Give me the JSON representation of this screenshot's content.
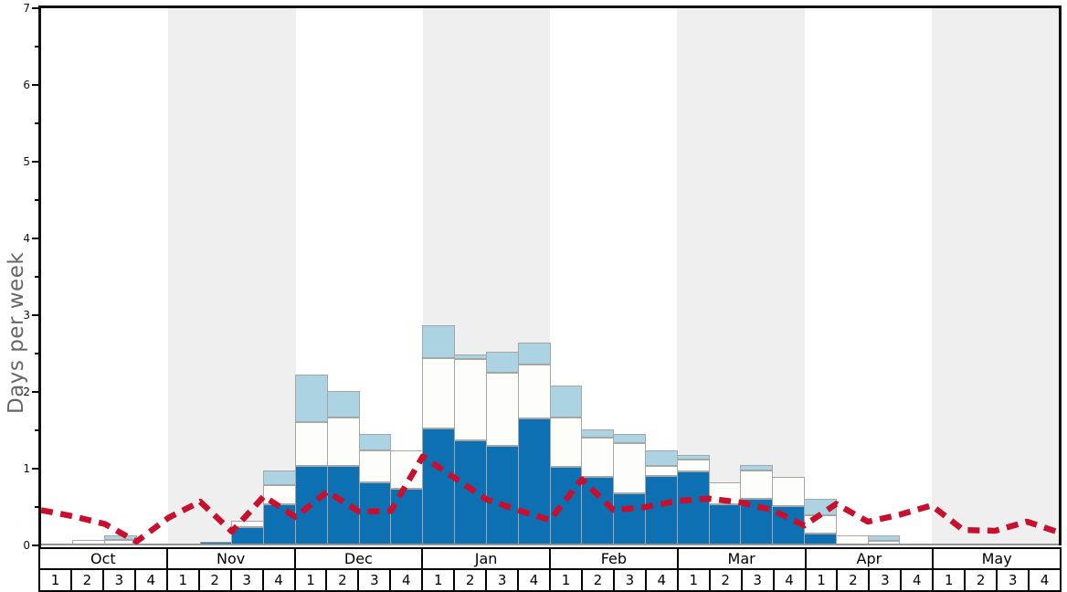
{
  "y_axis": {
    "label": "Days per week",
    "tick_labels": [
      "0",
      "1",
      "2",
      "3",
      "4",
      "5",
      "6",
      "7"
    ],
    "max": 7,
    "minor_tick_step": 0.5
  },
  "x_axis": {
    "months": [
      "Oct",
      "Nov",
      "Dec",
      "Jan",
      "Feb",
      "Mar",
      "Apr",
      "May"
    ],
    "week_labels": [
      "1",
      "2",
      "3",
      "4"
    ],
    "shaded_months": [
      "Nov",
      "Jan",
      "Mar",
      "May"
    ]
  },
  "colors": {
    "dark_blue": "#0c70b2",
    "bar_white": "#fdfdfa",
    "light_blue": "#abd3e1",
    "bar_border": "#a6a6a6",
    "red_line": "#c8102e",
    "band_gray": "#efefef",
    "axis_black": "#111111",
    "y_label_gray": "#666666",
    "zero_line_gray": "#949494"
  },
  "chart_data": {
    "type": "bar",
    "stacked": true,
    "title": "",
    "ylabel": "Days per week",
    "xlabel": "",
    "ylim": [
      0,
      7
    ],
    "grid": false,
    "legend": "none",
    "background_bands": "alternating month columns shaded light gray (Nov, Jan, Mar, May)",
    "categories": [
      "Oct-1",
      "Oct-2",
      "Oct-3",
      "Oct-4",
      "Nov-1",
      "Nov-2",
      "Nov-3",
      "Nov-4",
      "Dec-1",
      "Dec-2",
      "Dec-3",
      "Dec-4",
      "Jan-1",
      "Jan-2",
      "Jan-3",
      "Jan-4",
      "Feb-1",
      "Feb-2",
      "Feb-3",
      "Feb-4",
      "Mar-1",
      "Mar-2",
      "Mar-3",
      "Mar-4",
      "Apr-1",
      "Apr-2",
      "Apr-3",
      "Apr-4",
      "May-1",
      "May-2",
      "May-3",
      "May-4"
    ],
    "series": [
      {
        "id": "dark_blue",
        "name": "dark blue segment (bottom of stack)",
        "color": "#0c70b2",
        "values": [
          0,
          0,
          0,
          0,
          0,
          0.05,
          0.24,
          0.53,
          1.03,
          1.03,
          0.82,
          0.74,
          1.52,
          1.37,
          1.3,
          1.66,
          1.02,
          0.89,
          0.68,
          0.9,
          0.96,
          0.53,
          0.61,
          0.51,
          0.16,
          0,
          0,
          0,
          0,
          0,
          0,
          0
        ]
      },
      {
        "id": "white",
        "name": "white segment (middle of stack)",
        "color": "#fdfdfa",
        "values": [
          0,
          0.07,
          0.07,
          0,
          0,
          0,
          0.08,
          0.26,
          0.58,
          0.64,
          0.42,
          0.5,
          0.92,
          1.06,
          0.95,
          0.7,
          0.65,
          0.51,
          0.65,
          0.14,
          0.16,
          0.29,
          0.37,
          0.38,
          0.23,
          0.13,
          0.06,
          0,
          0,
          0,
          0,
          0
        ]
      },
      {
        "id": "light_blue",
        "name": "light blue segment (top of stack)",
        "color": "#abd3e1",
        "values": [
          0,
          0,
          0.06,
          0,
          0,
          0,
          0,
          0.19,
          0.62,
          0.34,
          0.21,
          0,
          0.43,
          0.06,
          0.27,
          0.28,
          0.41,
          0.11,
          0.12,
          0.2,
          0.06,
          0,
          0.07,
          0,
          0.22,
          0,
          0.07,
          0,
          0,
          0,
          0,
          0
        ]
      }
    ],
    "line_overlay": {
      "name": "red dashed line",
      "style": "dashed",
      "color": "#c8102e",
      "anchors": "33 points at week boundaries from left plot edge to right plot edge",
      "values": [
        0.46,
        0.38,
        0.28,
        0.05,
        0.36,
        0.57,
        0.18,
        0.64,
        0.37,
        0.7,
        0.44,
        0.45,
        1.16,
        0.88,
        0.6,
        0.46,
        0.33,
        0.86,
        0.46,
        0.5,
        0.58,
        0.61,
        0.56,
        0.46,
        0.26,
        0.54,
        0.31,
        0.4,
        0.52,
        0.2,
        0.19,
        0.31,
        0.17
      ]
    }
  }
}
